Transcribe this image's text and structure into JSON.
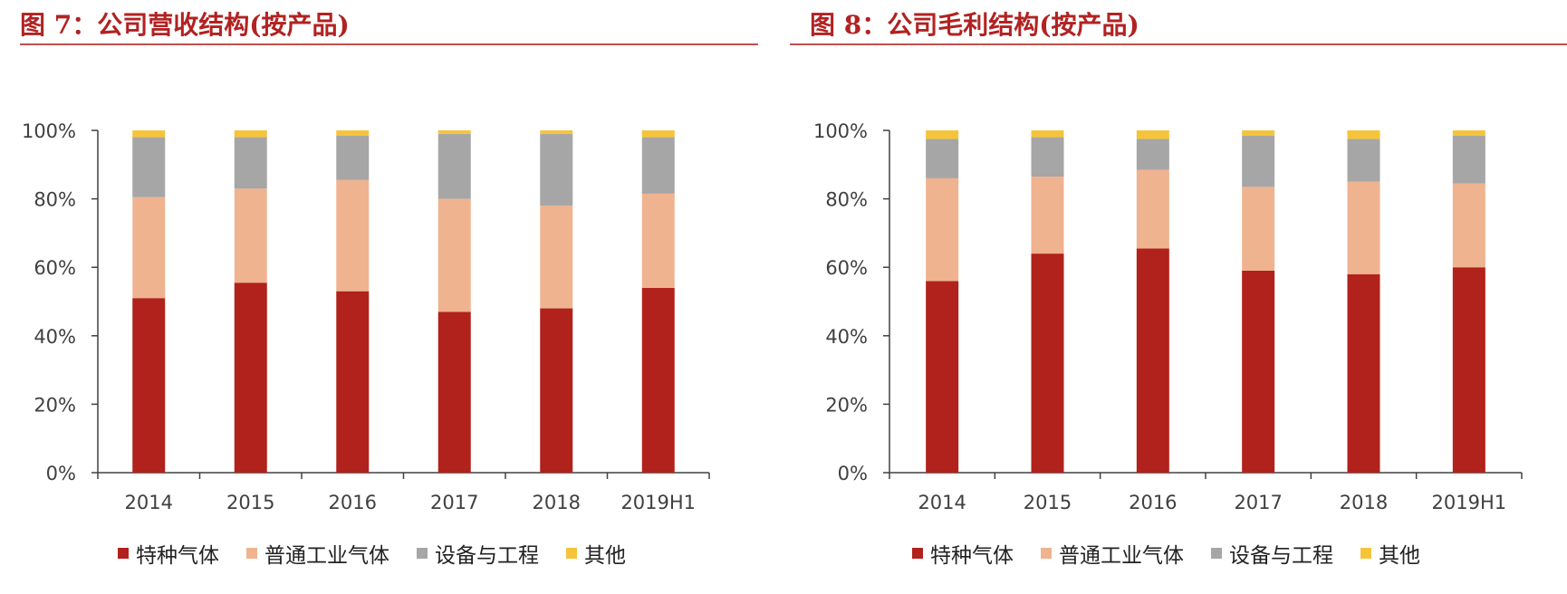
{
  "colors": {
    "title": "#b22222",
    "special_gas": "#b0221b",
    "industrial_gas": "#efb390",
    "equipment": "#a6a6a6",
    "other": "#f5c43a",
    "axis": "#404040"
  },
  "chart_data": [
    {
      "type": "bar",
      "stacked": true,
      "title": "图 7：公司营收结构(按产品)",
      "categories": [
        "2014",
        "2015",
        "2016",
        "2017",
        "2018",
        "2019H1"
      ],
      "ylim": [
        0,
        100
      ],
      "yticks": [
        "0%",
        "20%",
        "40%",
        "60%",
        "80%",
        "100%"
      ],
      "legend_position": "bottom",
      "series": [
        {
          "name": "特种气体",
          "color_key": "special_gas",
          "values": [
            51,
            55.5,
            53,
            47,
            48,
            54
          ]
        },
        {
          "name": "普通工业气体",
          "color_key": "industrial_gas",
          "values": [
            29.5,
            27.5,
            32.5,
            33,
            30,
            27.5
          ]
        },
        {
          "name": "设备与工程",
          "color_key": "equipment",
          "values": [
            17.5,
            15,
            13,
            19,
            21,
            16.5
          ]
        },
        {
          "name": "其他",
          "color_key": "other",
          "values": [
            2,
            2,
            1.5,
            1,
            1,
            2
          ]
        }
      ]
    },
    {
      "type": "bar",
      "stacked": true,
      "title": "图 8：公司毛利结构(按产品)",
      "categories": [
        "2014",
        "2015",
        "2016",
        "2017",
        "2018",
        "2019H1"
      ],
      "ylim": [
        0,
        100
      ],
      "yticks": [
        "0%",
        "20%",
        "40%",
        "60%",
        "80%",
        "100%"
      ],
      "legend_position": "bottom",
      "series": [
        {
          "name": "特种气体",
          "color_key": "special_gas",
          "values": [
            56,
            64,
            65.5,
            59,
            58,
            60
          ]
        },
        {
          "name": "普通工业气体",
          "color_key": "industrial_gas",
          "values": [
            30,
            22.5,
            23,
            24.5,
            27,
            24.5
          ]
        },
        {
          "name": "设备与工程",
          "color_key": "equipment",
          "values": [
            11.5,
            11.5,
            9,
            15,
            12.5,
            14
          ]
        },
        {
          "name": "其他",
          "color_key": "other",
          "values": [
            2.5,
            2,
            2.5,
            1.5,
            2.5,
            1.5
          ]
        }
      ]
    }
  ]
}
